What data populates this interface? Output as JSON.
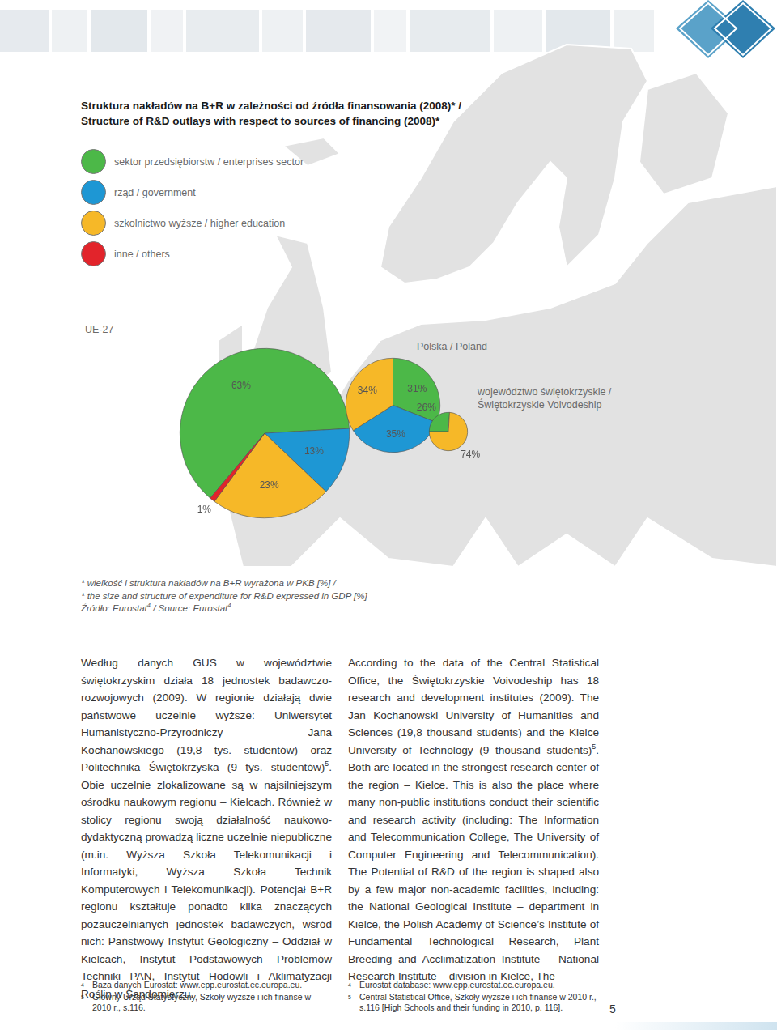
{
  "document": {
    "title": [
      "Struktura nakładów na B+R w zależności od źródła finansowania (2008)* /",
      "Structure of R&D outlays with respect to sources of financing (2008)*"
    ],
    "note": [
      [
        "* wielkość i struktura nakładów na B+R wyrażona w PKB [%] /"
      ],
      [
        "* the size and structure of expenditure for R&D expressed in GDP [%]"
      ],
      [
        "Źródło: Eurostat",
        {
          "sup": "4"
        },
        " / Source: Eurostat",
        {
          "sup": "4"
        }
      ]
    ],
    "columns": [
      [
        "Według danych GUS w województwie świętokrzyskim działa 18 jednostek badawczo-rozwojowych (2009). W regionie działają dwie państwowe uczelnie wyższe: Uniwersytet Humanistyczno-Przyrodniczy Jana Kochanowskiego (19,8 tys. studentów) oraz Politechnika Świętokrzyska (9 tys. studentów)",
        {
          "sup": "5"
        },
        ". Obie uczelnie zlokalizowane są w najsilniejszym ośrodku naukowym regionu – Kielcach. Również w stolicy regionu swoją działalność naukowo-dydaktyczną prowadzą liczne uczelnie niepubliczne (m.in. Wyższa Szkoła Telekomunikacji i Informatyki, Wyższa Szkoła Technik Komputerowych i Telekomunikacji). Potencjał B+R regionu kształtuje ponadto kilka znaczących pozauczelnianych jednostek badawczych, wśród nich: Państwowy Instytut Geologiczny – Oddział w Kielcach, Instytut Podstawowych Problemów Techniki PAN, Instytut Hodowli i Aklimatyzacji Roślin w Sandomierzu."
      ],
      [
        "According to the data of the Central Statistical Office, the Świętokrzyskie Voivodeship has 18 research and development institutes (2009). The Jan Kochanowski University of Humanities and Sciences (19,8 thousand students) and the Kielce University of Technology (9 thousand students)",
        {
          "sup": "5"
        },
        ". Both are located in the strongest research center of the region – Kielce. This is also the place where many non-public institutions conduct their scientific and research activity (including: The Information and Telecommunication College, The University of Computer Engineering and Telecommunication). The Potential of R&D of the region is shaped also by a few major non-academic facilities, including: the National Geological Institute – department in Kielce, the Polish Academy of Science’s Institute of Fundamental Technological Research, Plant Breeding and Acclimatization Institute – National Research Institute – division in Kielce, The"
      ]
    ],
    "footnotes": [
      [
        {
          "mark": "4",
          "text": "Baza danych Eurostat: www.epp.eurostat.ec.europa.eu."
        },
        {
          "mark": "5",
          "text": "Główny Urząd Statystyczny, Szkoły wyższe i ich finanse w 2010 r., s.116."
        }
      ],
      [
        {
          "mark": "4",
          "text": "Eurostat database: www.epp.eurostat.ec.europa.eu."
        },
        {
          "mark": "5",
          "text": "Central Statistical Office, Szkoły wyższe i ich finanse w 2010 r., s.116 [High Schools and their funding in 2010, p. 116]."
        }
      ]
    ],
    "page_number": "5"
  },
  "chart_data": [
    {
      "type": "pie",
      "title": "UE-27",
      "categories": [
        "sektor przedsiębiorstw / enterprises sector",
        "rząd / government",
        "szkolnictwo wyższe / higher education",
        "inne / others"
      ],
      "values": [
        63,
        13,
        23,
        1
      ],
      "value_labels": [
        "63%",
        "13%",
        "23%",
        "1%"
      ],
      "colors": [
        "#4cb848",
        "#1e97d4",
        "#f6b828",
        "#e2242b"
      ],
      "size": 1.92,
      "data_labels": true
    },
    {
      "type": "pie",
      "title": "Polska / Poland",
      "categories": [
        "sektor przedsiębiorstw / enterprises sector",
        "rząd / government",
        "szkolnictwo wyższe / higher education"
      ],
      "values": [
        31,
        35,
        34
      ],
      "value_labels": [
        "31%",
        "35%",
        "34%"
      ],
      "colors": [
        "#4cb848",
        "#1e97d4",
        "#f6b828"
      ],
      "size": 0.6,
      "data_labels": true
    },
    {
      "type": "pie",
      "title": "województwo świętokrzyskie / Świętokrzyskie Voivodeship",
      "categories": [
        "sektor przedsiębiorstw / enterprises sector",
        "szkolnictwo wyższe / higher education"
      ],
      "values": [
        26,
        74
      ],
      "value_labels": [
        "26%",
        "74%"
      ],
      "colors": [
        "#4cb848",
        "#f6b828"
      ],
      "size": 0.1,
      "data_labels": true
    }
  ]
}
